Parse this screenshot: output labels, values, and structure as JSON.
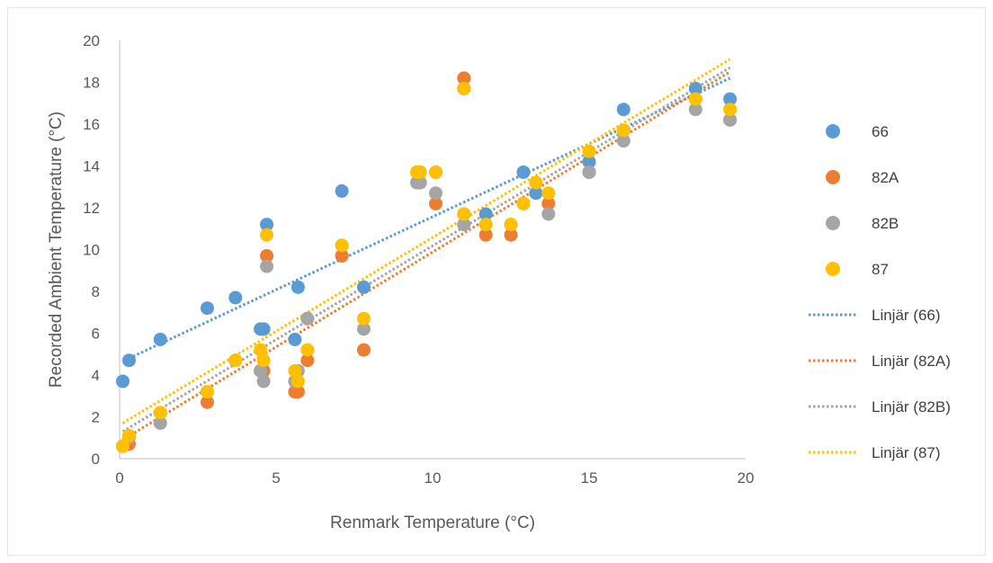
{
  "chart_data": {
    "type": "scatter",
    "title": "",
    "xlabel": "Renmark Temperature (°C)",
    "ylabel": "Recorded Ambient Temperature (°C)",
    "xlim": [
      0,
      20
    ],
    "ylim": [
      0,
      20
    ],
    "x_ticks": [
      0,
      5,
      10,
      15,
      20
    ],
    "y_ticks": [
      0,
      2,
      4,
      6,
      8,
      10,
      12,
      14,
      16,
      18,
      20
    ],
    "grid": false,
    "legend_position": "right",
    "series": [
      {
        "name": "66",
        "color": "#5b9bd5",
        "points": [
          [
            0.1,
            3.7
          ],
          [
            0.3,
            4.7
          ],
          [
            1.3,
            5.7
          ],
          [
            2.8,
            7.2
          ],
          [
            3.7,
            7.7
          ],
          [
            4.5,
            6.2
          ],
          [
            4.6,
            6.2
          ],
          [
            4.7,
            11.2
          ],
          [
            5.6,
            5.7
          ],
          [
            5.7,
            8.2
          ],
          [
            6.0,
            6.7
          ],
          [
            7.1,
            12.8
          ],
          [
            7.8,
            8.2
          ],
          [
            9.5,
            13.2
          ],
          [
            9.6,
            13.2
          ],
          [
            10.1,
            13.7
          ],
          [
            11.0,
            11.7
          ],
          [
            11.0,
            17.7
          ],
          [
            11.7,
            11.7
          ],
          [
            12.9,
            13.7
          ],
          [
            13.3,
            12.7
          ],
          [
            15.0,
            14.2
          ],
          [
            16.1,
            16.7
          ],
          [
            18.4,
            17.7
          ],
          [
            19.5,
            17.2
          ]
        ]
      },
      {
        "name": "82A",
        "color": "#ed7d31",
        "points": [
          [
            0.1,
            0.6
          ],
          [
            0.3,
            0.7
          ],
          [
            1.3,
            2.2
          ],
          [
            2.8,
            2.7
          ],
          [
            3.7,
            4.7
          ],
          [
            4.5,
            4.2
          ],
          [
            4.6,
            4.2
          ],
          [
            4.7,
            9.7
          ],
          [
            5.6,
            3.2
          ],
          [
            5.7,
            3.2
          ],
          [
            6.0,
            4.7
          ],
          [
            7.1,
            9.7
          ],
          [
            7.8,
            5.2
          ],
          [
            9.5,
            13.7
          ],
          [
            9.6,
            13.7
          ],
          [
            10.1,
            12.2
          ],
          [
            11.0,
            11.7
          ],
          [
            11.0,
            18.2
          ],
          [
            11.7,
            10.7
          ],
          [
            12.5,
            10.7
          ],
          [
            12.9,
            12.2
          ],
          [
            13.7,
            12.2
          ],
          [
            15.0,
            13.7
          ],
          [
            16.1,
            15.7
          ],
          [
            18.4,
            17.2
          ],
          [
            19.5,
            16.2
          ]
        ]
      },
      {
        "name": "82B",
        "color": "#a5a5a5",
        "points": [
          [
            0.1,
            0.6
          ],
          [
            0.3,
            1.0
          ],
          [
            1.3,
            1.7
          ],
          [
            2.8,
            3.2
          ],
          [
            3.7,
            4.7
          ],
          [
            4.5,
            4.2
          ],
          [
            4.6,
            3.7
          ],
          [
            4.7,
            9.2
          ],
          [
            5.6,
            3.7
          ],
          [
            5.7,
            4.2
          ],
          [
            6.0,
            6.7
          ],
          [
            7.1,
            10.2
          ],
          [
            7.8,
            6.2
          ],
          [
            9.5,
            13.2
          ],
          [
            9.6,
            13.2
          ],
          [
            10.1,
            12.7
          ],
          [
            11.0,
            11.2
          ],
          [
            11.0,
            17.7
          ],
          [
            11.7,
            11.2
          ],
          [
            12.5,
            11.2
          ],
          [
            12.9,
            12.2
          ],
          [
            13.7,
            11.7
          ],
          [
            15.0,
            13.7
          ],
          [
            16.1,
            15.2
          ],
          [
            18.4,
            16.7
          ],
          [
            19.5,
            16.2
          ]
        ]
      },
      {
        "name": "87",
        "color": "#ffc000",
        "points": [
          [
            0.1,
            0.6
          ],
          [
            0.3,
            1.1
          ],
          [
            1.3,
            2.2
          ],
          [
            2.8,
            3.2
          ],
          [
            3.7,
            4.7
          ],
          [
            4.5,
            5.2
          ],
          [
            4.6,
            4.7
          ],
          [
            4.7,
            10.7
          ],
          [
            5.6,
            4.2
          ],
          [
            5.7,
            3.7
          ],
          [
            6.0,
            5.2
          ],
          [
            7.1,
            10.2
          ],
          [
            7.8,
            6.7
          ],
          [
            9.5,
            13.7
          ],
          [
            9.6,
            13.7
          ],
          [
            10.1,
            13.7
          ],
          [
            11.0,
            11.7
          ],
          [
            11.0,
            17.7
          ],
          [
            11.7,
            11.2
          ],
          [
            12.5,
            11.2
          ],
          [
            12.9,
            12.2
          ],
          [
            13.3,
            13.2
          ],
          [
            13.7,
            12.7
          ],
          [
            15.0,
            14.7
          ],
          [
            16.1,
            15.7
          ],
          [
            18.4,
            17.2
          ],
          [
            19.5,
            16.7
          ]
        ]
      }
    ],
    "trendlines": [
      {
        "name": "Linjär (66)",
        "color": "#5b9bd5",
        "from": [
          0.3,
          4.8
        ],
        "to": [
          19.5,
          18.2
        ]
      },
      {
        "name": "Linjär (82A)",
        "color": "#ed7d31",
        "from": [
          0.1,
          0.9
        ],
        "to": [
          19.5,
          18.5
        ]
      },
      {
        "name": "Linjär (82B)",
        "color": "#a5a5a5",
        "from": [
          0.1,
          1.3
        ],
        "to": [
          19.5,
          18.7
        ]
      },
      {
        "name": "Linjär (87)",
        "color": "#ffc000",
        "from": [
          0.1,
          1.7
        ],
        "to": [
          19.5,
          19.1
        ]
      }
    ]
  }
}
